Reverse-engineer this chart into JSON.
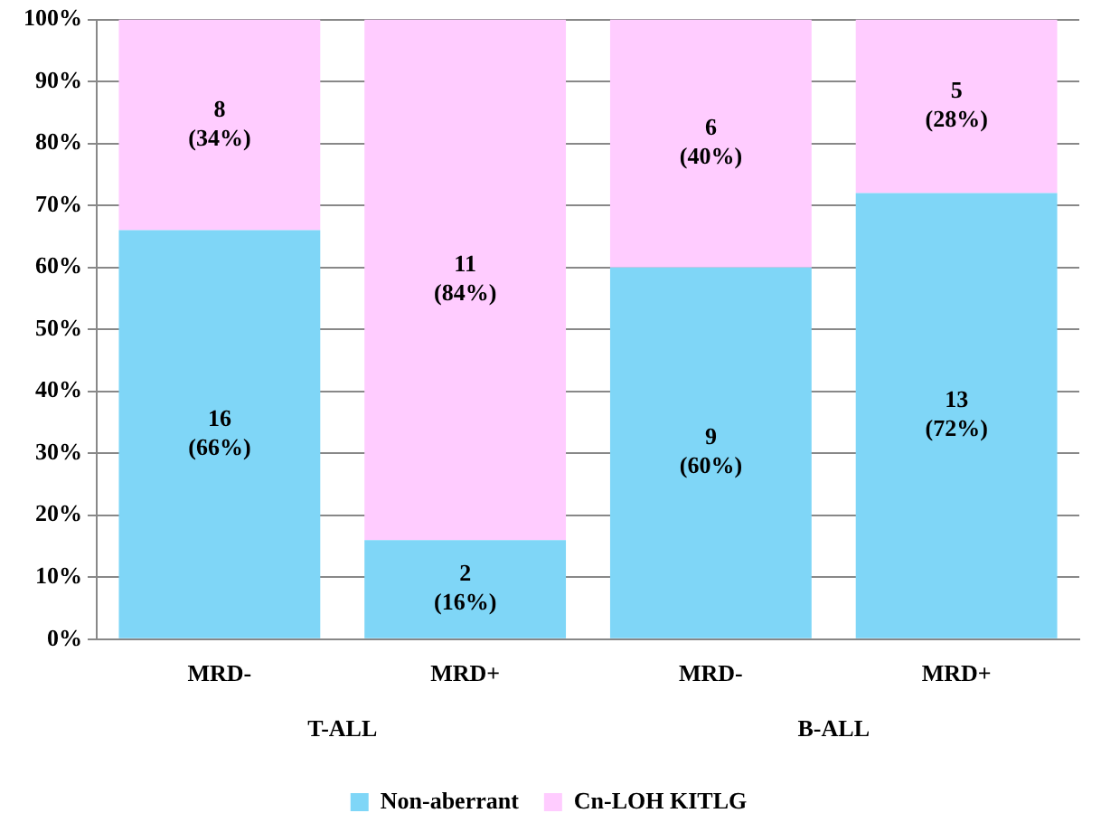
{
  "chart_data": {
    "type": "bar",
    "stacked": true,
    "categories": [
      "MRD-",
      "MRD+",
      "MRD-",
      "MRD+"
    ],
    "series": [
      {
        "name": "Non-aberrant",
        "color": "#7fd6f7",
        "values": [
          66,
          16,
          60,
          72
        ],
        "value_labels": [
          "16\n(66%)",
          "2\n(16%)",
          "9\n(60%)",
          "13\n(72%)"
        ]
      },
      {
        "name": "Cn-LOH KITLG",
        "color": "#ffccff",
        "values": [
          34,
          84,
          40,
          28
        ],
        "value_labels": [
          "8\n(34%)",
          "11\n(84%)",
          "6\n(40%)",
          "5\n(28%)"
        ]
      }
    ],
    "annotations": [
      "T-ALL",
      "B-ALL"
    ],
    "ylim": [
      0,
      100
    ],
    "yticks": [
      {
        "value": 0,
        "label": "0%"
      },
      {
        "value": 10,
        "label": "10%"
      },
      {
        "value": 20,
        "label": "20%"
      },
      {
        "value": 30,
        "label": "30%"
      },
      {
        "value": 40,
        "label": "40%"
      },
      {
        "value": 50,
        "label": "50%"
      },
      {
        "value": 60,
        "label": "60%"
      },
      {
        "value": 70,
        "label": "70%"
      },
      {
        "value": 80,
        "label": "80%"
      },
      {
        "value": 90,
        "label": "90%"
      },
      {
        "value": 100,
        "label": "100%"
      }
    ],
    "grid": "y",
    "legend": "bottom"
  }
}
